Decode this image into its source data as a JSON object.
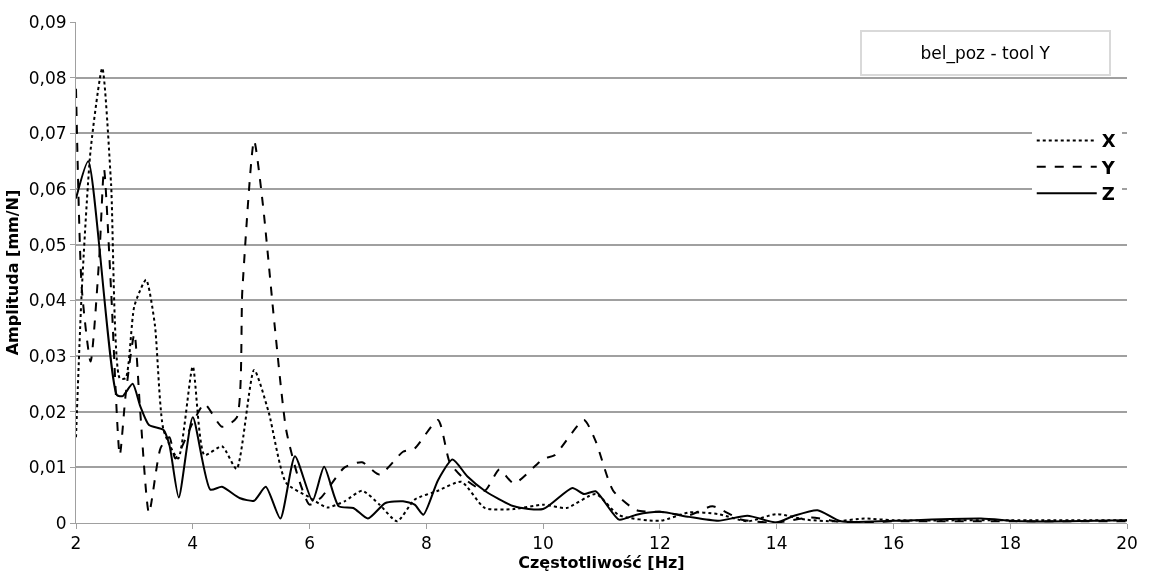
{
  "chart_data": {
    "type": "line",
    "xlabel": "Częstotliwość [Hz]",
    "ylabel": "Amplituda [mm/N]",
    "annotations": [
      "bel_poz - tool Y"
    ],
    "xlim": [
      2,
      20
    ],
    "xticks": [
      2,
      4,
      6,
      8,
      10,
      12,
      14,
      16,
      18,
      20
    ],
    "ylim": [
      0,
      0.09
    ],
    "yticks": [
      0,
      {
        "value": 0.01,
        "label": "0,01"
      },
      {
        "value": 0.02,
        "label": "0,02"
      },
      {
        "value": 0.03,
        "label": "0,03"
      },
      {
        "value": 0.04,
        "label": "0,04"
      },
      {
        "value": 0.05,
        "label": "0,05"
      },
      {
        "value": 0.06,
        "label": "0,06"
      },
      {
        "value": 0.07,
        "label": "0,07"
      },
      {
        "value": 0.08,
        "label": "0,08"
      },
      {
        "value": 0.09,
        "label": "0,09"
      }
    ],
    "grid": "y",
    "legend": "right",
    "marker": "none",
    "series": [
      {
        "name": "X",
        "color": "#000000",
        "line_style": "dotted",
        "x": [
          2.0,
          2.1,
          2.25,
          2.45,
          2.6,
          2.75,
          2.85,
          3.0,
          3.2,
          3.35,
          3.5,
          3.75,
          4.0,
          4.2,
          4.5,
          4.75,
          5.05,
          5.3,
          5.6,
          6.0,
          6.3,
          6.6,
          6.9,
          7.2,
          7.5,
          7.8,
          8.2,
          8.6,
          9.0,
          9.5,
          10.0,
          10.4,
          10.9,
          11.3,
          12.0,
          12.5,
          13.0,
          13.5,
          14.0,
          14.5,
          15.0,
          15.5,
          16.0,
          18.0,
          20.0
        ],
        "values": [
          0.0154,
          0.042,
          0.067,
          0.0817,
          0.061,
          0.026,
          0.026,
          0.039,
          0.0437,
          0.0357,
          0.0167,
          0.0116,
          0.0281,
          0.0122,
          0.0138,
          0.0097,
          0.0275,
          0.0199,
          0.0072,
          0.0046,
          0.0028,
          0.0039,
          0.0058,
          0.0033,
          0.0003,
          0.0042,
          0.0058,
          0.0074,
          0.0027,
          0.0025,
          0.0033,
          0.0027,
          0.0052,
          0.0014,
          0.0004,
          0.0019,
          0.0016,
          0.0003,
          0.0016,
          0.0006,
          0.0003,
          0.0008,
          0.0005,
          0.0005,
          0.0005
        ]
      },
      {
        "name": "Y",
        "color": "#000000",
        "line_style": "dashed",
        "x": [
          2.0,
          2.1,
          2.25,
          2.4,
          2.48,
          2.6,
          2.75,
          2.85,
          3.0,
          3.1,
          3.25,
          3.45,
          3.6,
          3.7,
          4.0,
          4.2,
          4.5,
          4.75,
          4.85,
          5.05,
          5.2,
          5.4,
          5.6,
          5.8,
          6.0,
          6.2,
          6.6,
          6.9,
          7.2,
          7.6,
          7.8,
          8.2,
          8.4,
          8.6,
          9.0,
          9.25,
          9.5,
          10.0,
          10.2,
          10.7,
          10.9,
          11.2,
          11.6,
          12.0,
          12.5,
          12.9,
          13.4,
          14.0,
          14.6,
          15.2,
          16.0,
          18.0,
          20.0
        ],
        "values": [
          0.078,
          0.042,
          0.029,
          0.048,
          0.0636,
          0.042,
          0.0122,
          0.023,
          0.034,
          0.02,
          0.0018,
          0.0135,
          0.0154,
          0.0116,
          0.018,
          0.0214,
          0.0173,
          0.0189,
          0.042,
          0.0687,
          0.0573,
          0.0357,
          0.0167,
          0.0084,
          0.0033,
          0.0046,
          0.01,
          0.0109,
          0.0087,
          0.0128,
          0.0134,
          0.0185,
          0.0109,
          0.0084,
          0.0058,
          0.0096,
          0.0071,
          0.0115,
          0.0122,
          0.0185,
          0.0147,
          0.0058,
          0.0023,
          0.002,
          0.0014,
          0.003,
          0.0006,
          0.0001,
          0.001,
          0.0,
          0.0003,
          0.0003,
          0.0003
        ]
      },
      {
        "name": "Z",
        "color": "#000000",
        "line_style": "solid",
        "x": [
          2.0,
          2.21,
          2.7,
          2.8,
          2.97,
          3.1,
          3.25,
          3.5,
          3.6,
          3.76,
          4.0,
          4.3,
          4.5,
          4.8,
          5.05,
          5.25,
          5.5,
          5.75,
          6.05,
          6.25,
          6.5,
          6.75,
          7.0,
          7.3,
          7.6,
          7.8,
          7.95,
          8.2,
          8.45,
          8.7,
          9.0,
          9.5,
          10.0,
          10.5,
          10.7,
          10.9,
          11.3,
          11.6,
          12.0,
          12.5,
          13.0,
          13.5,
          14.0,
          14.3,
          14.7,
          15.1,
          16.0,
          17.5,
          18.2,
          20.0
        ],
        "values": [
          0.0583,
          0.065,
          0.023,
          0.0228,
          0.025,
          0.021,
          0.0176,
          0.0167,
          0.014,
          0.0046,
          0.019,
          0.006,
          0.0065,
          0.0045,
          0.004,
          0.0065,
          0.0008,
          0.012,
          0.004,
          0.0101,
          0.003,
          0.0027,
          0.0008,
          0.0036,
          0.0039,
          0.0033,
          0.0015,
          0.0077,
          0.0114,
          0.0084,
          0.0058,
          0.003,
          0.0025,
          0.0063,
          0.0052,
          0.0057,
          0.0006,
          0.0015,
          0.002,
          0.0011,
          0.0004,
          0.0013,
          0.0001,
          0.0013,
          0.0023,
          0.0003,
          0.0004,
          0.0008,
          0.0003,
          0.0005
        ]
      }
    ]
  }
}
